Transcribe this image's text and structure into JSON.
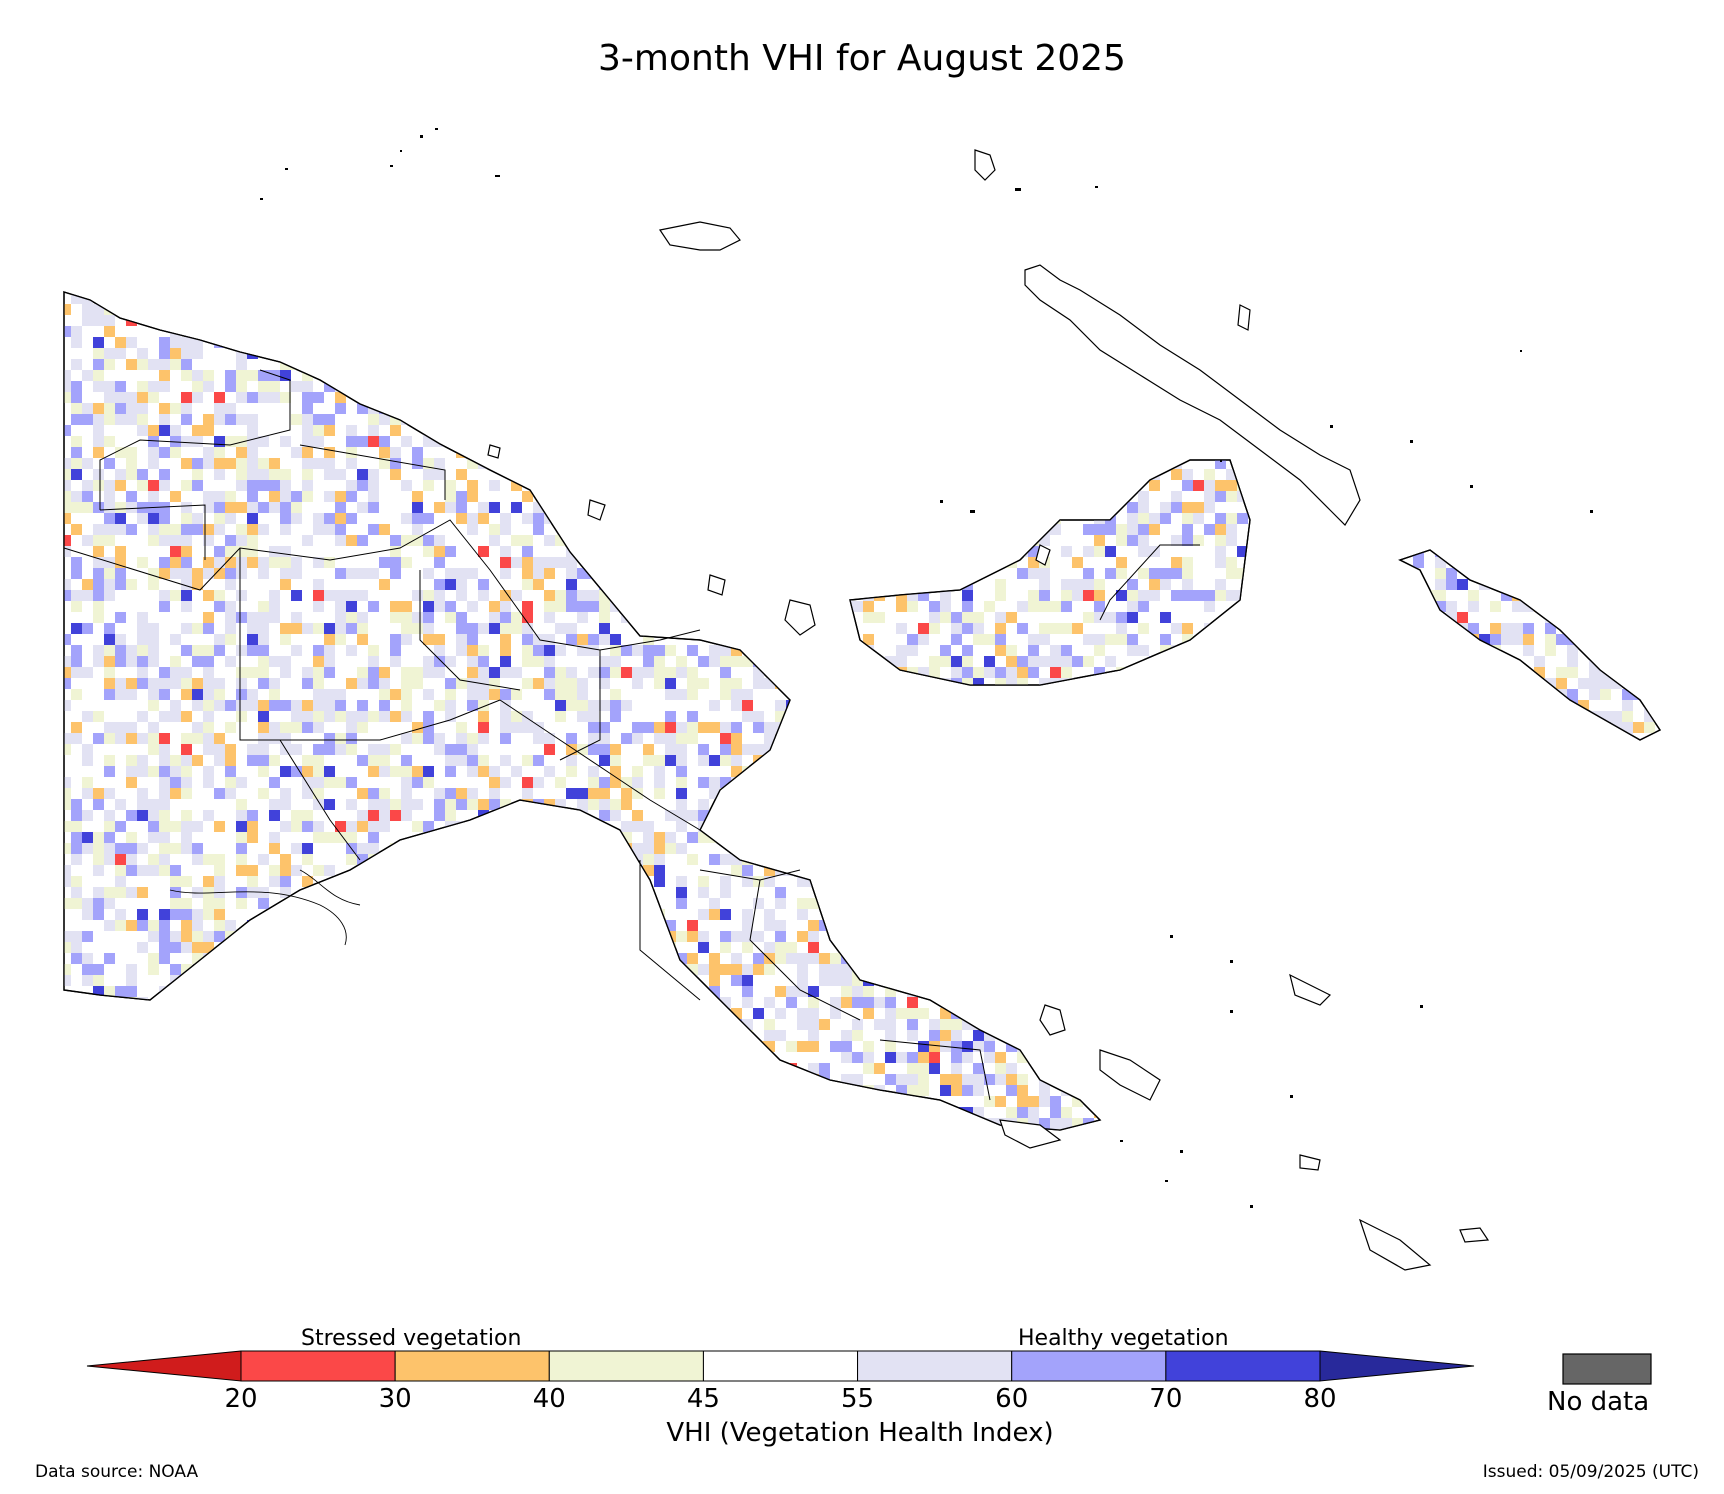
{
  "title": "3-month VHI for August 2025",
  "legend": {
    "stressed_label": "Stressed vegetation",
    "healthy_label": "Healthy vegetation",
    "axis_label": "VHI (Vegetation Health Index)",
    "nodata_label": "No data",
    "nodata_color": "#666666",
    "ticks": [
      "20",
      "30",
      "40",
      "45",
      "55",
      "60",
      "70",
      "80"
    ],
    "bins": [
      {
        "range": "<20",
        "color": "#d01c1c"
      },
      {
        "range": "20-30",
        "color": "#fb4848"
      },
      {
        "range": "30-40",
        "color": "#fdc36b"
      },
      {
        "range": "40-45",
        "color": "#f0f4d4"
      },
      {
        "range": "45-55",
        "color": "#ffffff"
      },
      {
        "range": "55-60",
        "color": "#e2e2f3"
      },
      {
        "range": "60-70",
        "color": "#a3a3fb"
      },
      {
        "range": "70-80",
        "color": "#4142da"
      },
      {
        "range": ">80",
        "color": "#28299b"
      }
    ]
  },
  "footer": {
    "source": "Data source: NOAA",
    "issued": "Issued: 05/09/2025 (UTC)"
  }
}
